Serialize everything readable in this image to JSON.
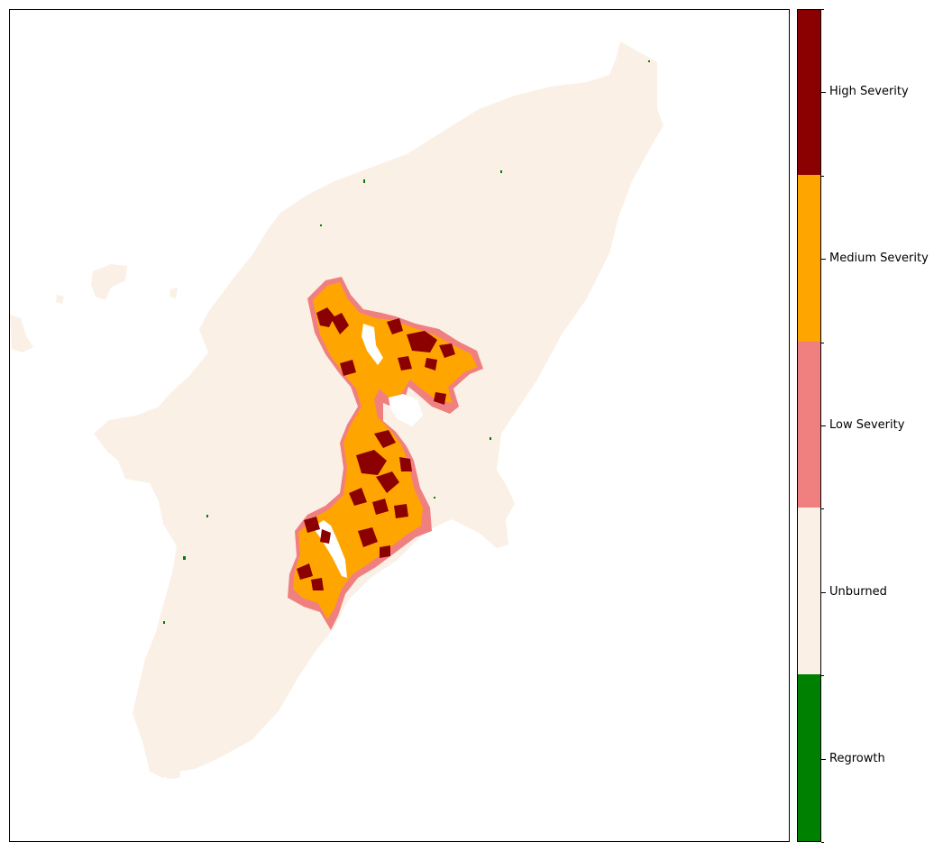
{
  "legend": {
    "categories": [
      {
        "label": "Regrowth",
        "color": "#008000"
      },
      {
        "label": "Unburned",
        "color": "#faf0e6"
      },
      {
        "label": "Low Severity",
        "color": "#f08080"
      },
      {
        "label": "Medium Severity",
        "color": "#ffa500"
      },
      {
        "label": "High Severity",
        "color": "#8b0000"
      }
    ]
  }
}
